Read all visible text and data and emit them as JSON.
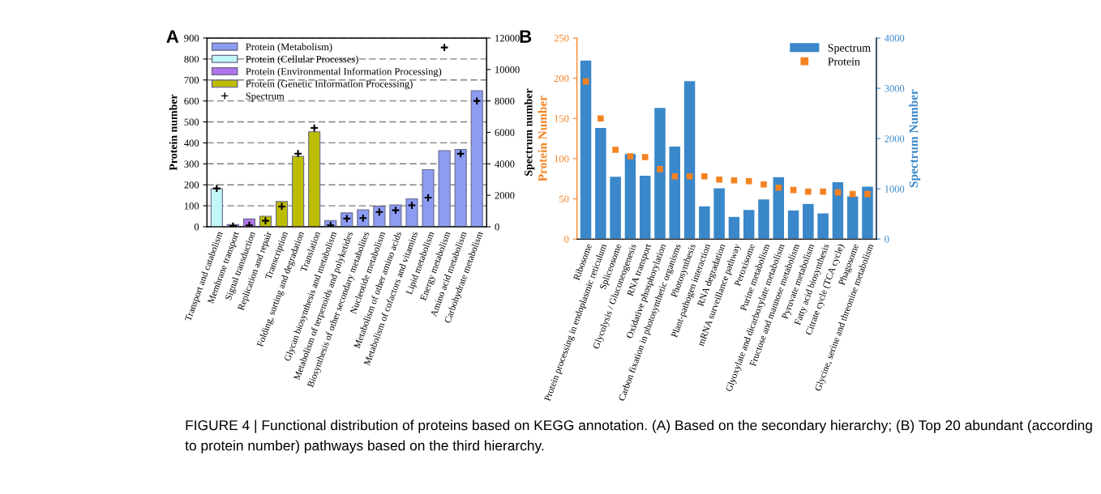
{
  "chart_data": [
    {
      "type": "bar",
      "title": "A",
      "ylabel": "Protein number",
      "y2label": "Spectrum number",
      "categories": [
        "Transport and catabolism",
        "Membrane transport",
        "Signal transduction",
        "Replication and repair",
        "Transcription",
        "Folding, sorting and degradation",
        "Translation",
        "Glycan biosynthesis and metabolism",
        "Metabolism of terpenoids and polyketides",
        "Biosynthesis of other secondary metabolites",
        "Nucleotide metabolism",
        "Metabolism of other amino acids",
        "Metabolism of cofactors and vitamins",
        "Lipid metabolism",
        "Energy metabolism",
        "Amino acid metabolism",
        "Carbohydrate metabolism"
      ],
      "series": [
        {
          "name": "Protein (Metabolism)",
          "color": "#8c9cf2",
          "values": [
            null,
            null,
            null,
            null,
            null,
            null,
            null,
            30,
            66,
            81,
            98,
            104,
            133,
            272,
            363,
            369,
            649
          ]
        },
        {
          "name": "Protein (Cellular Processes)",
          "color": "#c2f7f7",
          "values": [
            181,
            null,
            null,
            null,
            null,
            null,
            null,
            null,
            null,
            null,
            null,
            null,
            null,
            null,
            null,
            null,
            null
          ]
        },
        {
          "name": "Protein (Environmental Information Processing)",
          "color": "#b274ea",
          "values": [
            null,
            10,
            37,
            null,
            null,
            null,
            null,
            null,
            null,
            null,
            null,
            null,
            null,
            null,
            null,
            null,
            null
          ]
        },
        {
          "name": "Protein (Genetic Information Processing)",
          "color": "#bdbd00",
          "values": [
            null,
            null,
            null,
            50,
            120,
            336,
            453,
            null,
            null,
            null,
            null,
            null,
            null,
            null,
            null,
            null,
            null
          ]
        },
        {
          "name": "Spectrum",
          "type": "scatter",
          "axis": "y2",
          "marker": "cross",
          "color": "#000000",
          "values": [
            2440,
            50,
            90,
            380,
            1290,
            4650,
            6280,
            90,
            520,
            550,
            940,
            1050,
            1360,
            1850,
            11400,
            4640,
            8000
          ]
        }
      ],
      "ylim": [
        0,
        900
      ],
      "yticks": [
        0,
        100,
        200,
        300,
        400,
        500,
        600,
        700,
        800,
        900
      ],
      "y2lim": [
        0,
        12000
      ],
      "y2ticks": [
        0,
        2000,
        4000,
        6000,
        8000,
        10000,
        12000
      ],
      "grid": "y",
      "legend": "top left"
    },
    {
      "type": "bar",
      "title": "B",
      "ylabel": "Protein Number",
      "y2label": "Spectrum Number",
      "categories": [
        "Ribosome",
        "Protein processing in endoplasmic reticulum",
        "Spliceosome",
        "Glycolysis / Gluconeogenesis",
        "RNA transport",
        "Oxidative phosphorylation",
        "Carbon fixation in photosynthetic organisms",
        "Photosynthesis",
        "Plant-pathogen interaction",
        "RNA degradation",
        "mRNA surveillance pathway",
        "Peroxisome",
        "Purine metabolism",
        "Glyoxylate and dicarboxylate metabolism",
        "Fructose and mannose metabolism",
        "Pyruvate metabolism",
        "Fatty acid biosynthesis",
        "Citrate cycle (TCA cycle)",
        "Phagosome",
        "Glycine, serine and threonine metabolism"
      ],
      "series": [
        {
          "name": "Spectrum",
          "axis": "y2",
          "color": "#3a87c9",
          "values": [
            3560,
            2220,
            1250,
            1700,
            1270,
            2620,
            1850,
            3150,
            660,
            1020,
            450,
            590,
            800,
            1240,
            580,
            710,
            520,
            1140,
            860,
            1050
          ]
        },
        {
          "name": "Protein",
          "type": "scatter",
          "marker": "square",
          "color": "#f58220",
          "values": [
            196,
            150,
            111,
            103,
            102,
            87,
            78,
            78,
            78,
            74,
            73,
            72,
            68,
            64,
            61,
            59,
            59,
            58,
            56,
            56
          ]
        }
      ],
      "ylim": [
        0,
        250
      ],
      "yticks": [
        0,
        50,
        100,
        150,
        200,
        250
      ],
      "y2lim": [
        0,
        4000
      ],
      "y2ticks": [
        0,
        1000,
        2000,
        3000,
        4000
      ],
      "legend": "top right",
      "annotations": [
        "FIGURE 4 | Functional distribution of proteins based on KEGG annotation. (A) Based on the secondary hierarchy; (B) Top 20 abundant (according to protein number) pathways based on the third hierarchy."
      ]
    }
  ]
}
